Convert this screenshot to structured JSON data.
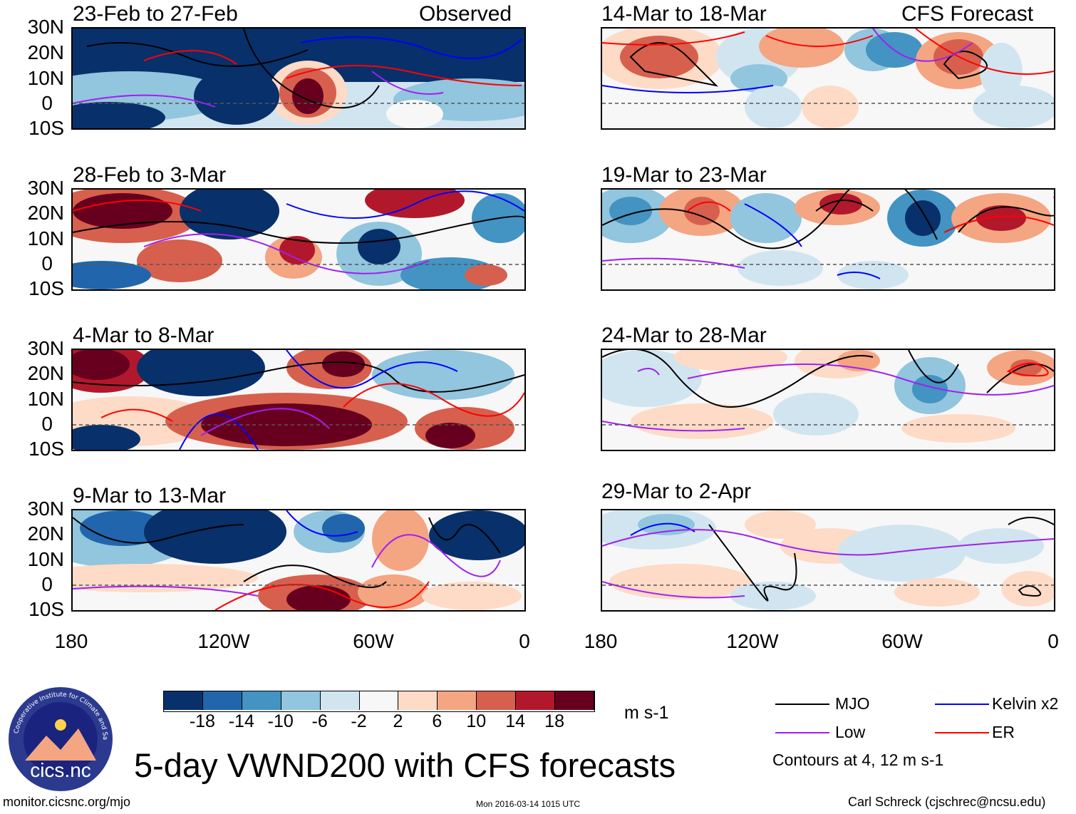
{
  "main_title": "5-day VWND200 with CFS forecasts",
  "observed_label": "Observed",
  "forecast_label": "CFS Forecast",
  "footer": {
    "url": "monitor.cicsnc.org/mjo",
    "timestamp": "Mon 2016-03-14 1015 UTC",
    "author": "Carl Schreck (cjschrec@ncsu.edu)"
  },
  "logo": {
    "ring_text": "Cooperative Institute for Climate and Satellites",
    "name": "cics.nc"
  },
  "colorbar": {
    "units": "m s-1",
    "colors": [
      "#08306b",
      "#2166ac",
      "#4393c3",
      "#92c5de",
      "#d1e5f0",
      "#f7f7f7",
      "#fddbc7",
      "#f4a582",
      "#d6604d",
      "#b2182b",
      "#67001f"
    ],
    "ticks": [
      "-18",
      "-14",
      "-10",
      "-6",
      "-2",
      "2",
      "6",
      "10",
      "14",
      "18"
    ]
  },
  "legend": {
    "items": [
      {
        "label": "MJO",
        "color": "#000000"
      },
      {
        "label": "Kelvin x2",
        "color": "#0000ff"
      },
      {
        "label": "Low",
        "color": "#a020f0"
      },
      {
        "label": "ER",
        "color": "#ff0000"
      }
    ],
    "note": "Contours at 4, 12 m s-1"
  },
  "axes": {
    "lat_ticks": [
      "30N",
      "20N",
      "10N",
      "0",
      "10S"
    ],
    "lon_ticks": [
      "180",
      "120W",
      "60W",
      "0"
    ]
  },
  "chart_data": {
    "type": "heatmap",
    "title": "5-day VWND200 with CFS forecasts",
    "variable": "200-hPa meridional wind (VWND200)",
    "units": "m s-1",
    "lat_range": [
      -10,
      30
    ],
    "lon_range": [
      -180,
      0
    ],
    "contour_levels": [
      4,
      12
    ],
    "panels": [
      {
        "title": "23-Feb to 27-Feb",
        "source": "Observed"
      },
      {
        "title": "28-Feb to 3-Mar",
        "source": "Observed"
      },
      {
        "title": "4-Mar to 8-Mar",
        "source": "Observed"
      },
      {
        "title": "9-Mar to 13-Mar",
        "source": "Observed"
      },
      {
        "title": "14-Mar to 18-Mar",
        "source": "CFS Forecast"
      },
      {
        "title": "19-Mar to 23-Mar",
        "source": "CFS Forecast"
      },
      {
        "title": "24-Mar to 28-Mar",
        "source": "CFS Forecast"
      },
      {
        "title": "29-Mar to 2-Apr",
        "source": "CFS Forecast"
      }
    ]
  }
}
